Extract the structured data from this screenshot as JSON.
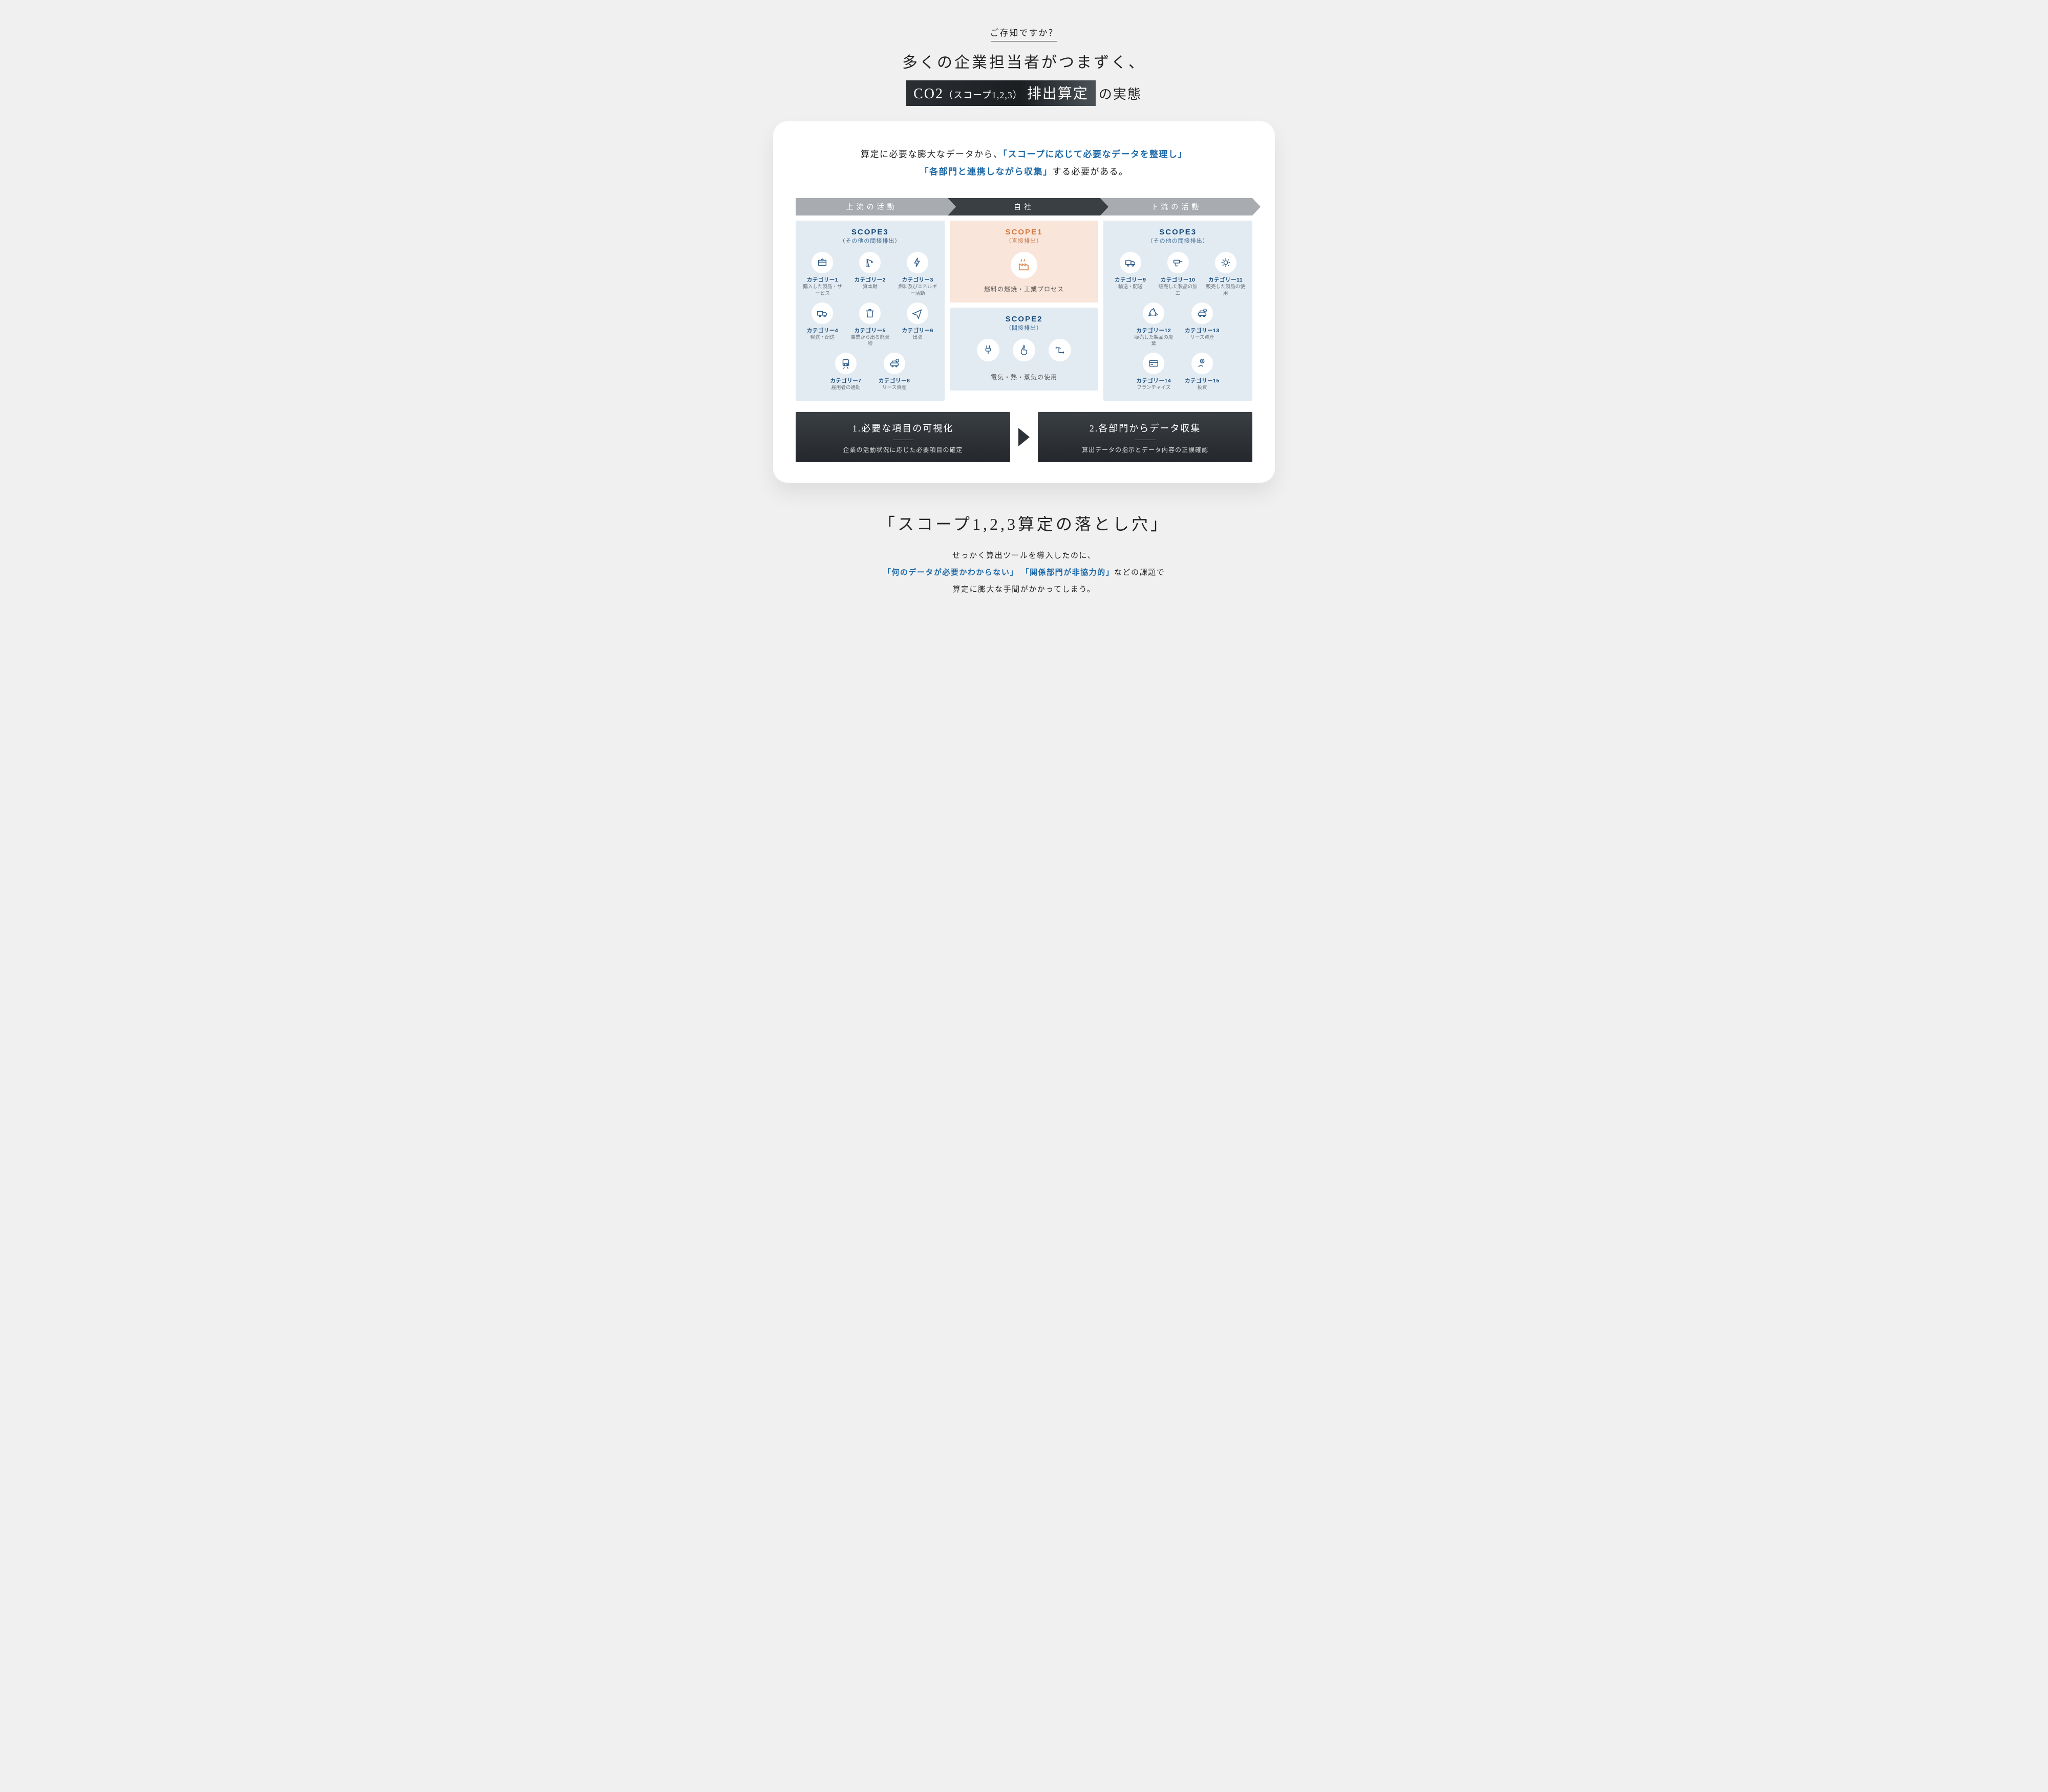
{
  "colors": {
    "page_bg": "#f0f0f0",
    "card_bg": "#ffffff",
    "blue_text": "#1f6aa8",
    "navy": "#15497a",
    "grey_text": "#6b7580",
    "arrow_grey": "#a8acb0",
    "arrow_dark": "#3a3f44",
    "panel_blue": "#e3ebf2",
    "panel_peach": "#f9e5d9",
    "orange": "#dd8a55",
    "icon_stroke": "#2a5b88",
    "step_bg_top": "#3a3f44",
    "step_bg_bottom": "#24272b"
  },
  "header": {
    "kicker": "ご存知ですか？",
    "headline1": "多くの企業担当者がつまずく、",
    "pill_main": "CO2",
    "pill_sub": "（スコープ1,2,3）",
    "pill_tail": "排出算定",
    "headline2_tail": "の実態"
  },
  "card_lede": {
    "pre": "算定に必要な膨大なデータから、",
    "em1": "「スコープに応じて必要なデータを整理し」",
    "em2": "「各部門と連携しながら収集」",
    "post": "する必要がある。"
  },
  "arrows": {
    "left": "上流の活動",
    "center": "自社",
    "right": "下流の活動"
  },
  "scope3_up": {
    "title": "SCOPE3",
    "subtitle": "（その他の間接排出）",
    "cats": [
      {
        "title": "カテゴリー1",
        "desc": "購入した製品・サービス",
        "icon": "box"
      },
      {
        "title": "カテゴリー2",
        "desc": "資本財",
        "icon": "crane"
      },
      {
        "title": "カテゴリー3",
        "desc": "燃料及びエネルギー活動",
        "icon": "bolt"
      },
      {
        "title": "カテゴリー4",
        "desc": "輸送・配送",
        "icon": "truck"
      },
      {
        "title": "カテゴリー5",
        "desc": "事業から出る廃棄物",
        "icon": "trash"
      },
      {
        "title": "カテゴリー6",
        "desc": "出張",
        "icon": "plane"
      },
      {
        "title": "カテゴリー7",
        "desc": "雇用者の通勤",
        "icon": "train"
      },
      {
        "title": "カテゴリー8",
        "desc": "リース資産",
        "icon": "car-money"
      }
    ]
  },
  "scope1": {
    "title": "SCOPE1",
    "subtitle": "（直接排出）",
    "caption": "燃料の燃焼・工業プロセス",
    "icon": "factory"
  },
  "scope2": {
    "title": "SCOPE2",
    "subtitle": "（間接排出）",
    "caption": "電気・熱・蒸気の使用",
    "icons": [
      "plug",
      "flame",
      "pipe"
    ]
  },
  "scope3_down": {
    "title": "SCOPE3",
    "subtitle": "（その他の間接排出）",
    "cats": [
      {
        "title": "カテゴリー9",
        "desc": "輸送・配送",
        "icon": "truck"
      },
      {
        "title": "カテゴリー10",
        "desc": "販売した製品の加工",
        "icon": "drill"
      },
      {
        "title": "カテゴリー11",
        "desc": "販売した製品の使用",
        "icon": "gear"
      },
      {
        "title": "カテゴリー12",
        "desc": "販売した製品の廃棄",
        "icon": "recycle"
      },
      {
        "title": "カテゴリー13",
        "desc": "リース資産",
        "icon": "car-money"
      },
      {
        "title": "カテゴリー14",
        "desc": "フランチャイズ",
        "icon": "card"
      },
      {
        "title": "カテゴリー15",
        "desc": "投資",
        "icon": "coin-hand"
      }
    ]
  },
  "steps": [
    {
      "title": "1.必要な項目の可視化",
      "desc": "企業の活動状況に応じた必要項目の確定"
    },
    {
      "title": "2.各部門からデータ収集",
      "desc": "算出データの指示とデータ内容の正誤確認"
    }
  ],
  "closing": {
    "title": "「スコープ1,2,3算定の落とし穴」",
    "line1": "せっかく算出ツールを導入したのに、",
    "em1": "「何のデータが必要かわからない」",
    "em2": "「関係部門が非協力的」",
    "line2_tail": "などの課題で",
    "line3": "算定に膨大な手間がかかってしまう。"
  }
}
